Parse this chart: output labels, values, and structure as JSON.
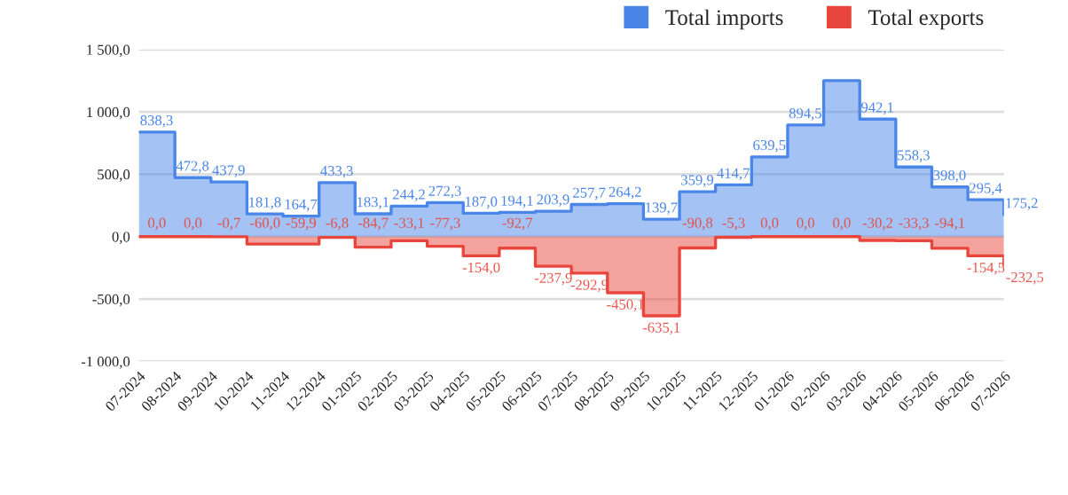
{
  "chart_data": {
    "type": "step",
    "categories": [
      "07-2024",
      "08-2024",
      "09-2024",
      "10-2024",
      "11-2024",
      "12-2024",
      "01-2025",
      "02-2025",
      "03-2025",
      "04-2025",
      "05-2025",
      "06-2025",
      "07-2025",
      "08-2025",
      "09-2025",
      "10-2025",
      "11-2025",
      "12-2025",
      "01-2026",
      "02-2026",
      "03-2026",
      "04-2026",
      "05-2026",
      "06-2026",
      "07-2026"
    ],
    "series": [
      {
        "name": "Total imports",
        "color": "#4a86e8",
        "values": [
          838.3,
          472.8,
          437.9,
          181.8,
          164.7,
          433.3,
          183.1,
          244.2,
          272.3,
          187.0,
          194.1,
          203.9,
          257.7,
          264.2,
          139.7,
          359.9,
          414.7,
          639.5,
          894.5,
          1250,
          942.1,
          558.3,
          398.0,
          295.4,
          175.2
        ],
        "value_labels": [
          "838,3",
          "472,8",
          "437,9",
          "181,8",
          "164,7",
          "433,3",
          "183,1",
          "244,2",
          "272,3",
          "187,0",
          "194,1",
          "203,9",
          "257,7",
          "264,2",
          "139,7",
          "359,9",
          "414,7",
          "639,5",
          "894,5",
          null,
          "942,1",
          "558,3",
          "398,0",
          "295,4",
          "175,2"
        ]
      },
      {
        "name": "Total exports",
        "color": "#e8453c",
        "values": [
          0.0,
          0.0,
          -0.7,
          -60.0,
          -59.9,
          -6.8,
          -84.7,
          -33.1,
          -77.3,
          -154.0,
          -92.7,
          -237.9,
          -292.9,
          -450.1,
          -635.1,
          -90.8,
          -5.3,
          0.0,
          0.0,
          0.0,
          -30.2,
          -33.3,
          -94.1,
          -154.5,
          -232.5
        ],
        "value_labels": [
          "0,0",
          "0,0",
          "-0,7",
          "-60,0",
          "-59,9",
          "-6,8",
          "-84,7",
          "-33,1",
          "-77,3",
          "-154,0",
          "-92,7",
          "-237,9",
          "-292,9",
          "-450,1",
          "-635,1",
          "-90,8",
          "-5,3",
          "0,0",
          "0,0",
          "0,0",
          "-30,2",
          "-33,3",
          "-94,1",
          "-154,5",
          "-232,5"
        ]
      }
    ],
    "ylim": [
      -1000,
      1500
    ],
    "yticks": [
      {
        "value": -1000,
        "label": "-1 000,0"
      },
      {
        "value": -500,
        "label": "-500,0"
      },
      {
        "value": 0,
        "label": "0,0"
      },
      {
        "value": 500,
        "label": "500,0"
      },
      {
        "value": 1000,
        "label": "1 000,0"
      },
      {
        "value": 1500,
        "label": "1 500,0"
      }
    ],
    "grid": "y",
    "legend": "top right"
  }
}
